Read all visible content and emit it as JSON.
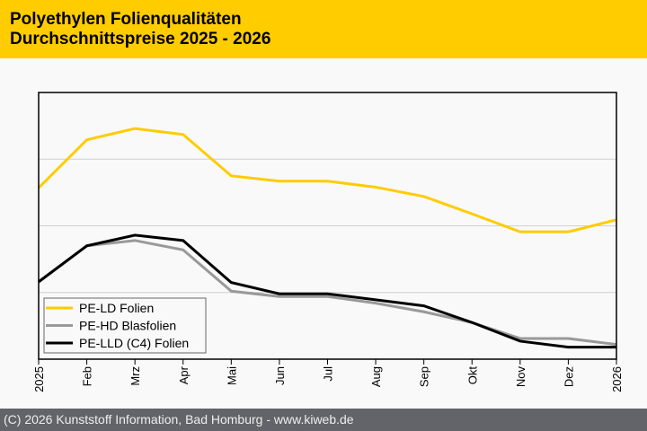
{
  "header": {
    "title_line1": "Polyethylen Folienqualitäten",
    "title_line2": "Durchschnittspreise 2025 - 2026"
  },
  "footer": {
    "text": "(C) 2026 Kunststoff Information, Bad Homburg - www.kiweb.de"
  },
  "colors": {
    "header_bg": "#ffcc00",
    "footer_bg": "#636469",
    "pe_ld": "#ffcc00",
    "pe_hd": "#999999",
    "pe_lld": "#000000"
  },
  "chart_data": {
    "type": "line",
    "title": "Polyethylen Folienqualitäten Durchschnittspreise 2025 - 2026",
    "xlabel": "",
    "ylabel": "",
    "y_units": "relative (no y-axis tick labels shown; 1 unit = one gridline band)",
    "ylim": [
      0,
      4
    ],
    "grid": true,
    "legend_position": "bottom-left",
    "categories": [
      "2025",
      "Feb",
      "Mrz",
      "Apr",
      "Mai",
      "Jun",
      "Jul",
      "Aug",
      "Sep",
      "Okt",
      "Nov",
      "Dez",
      "2026"
    ],
    "series": [
      {
        "name": "PE-LD Folien",
        "color": "#ffcc00",
        "values": [
          2.57,
          3.29,
          3.46,
          3.37,
          2.75,
          2.67,
          2.67,
          2.58,
          2.44,
          2.18,
          1.91,
          1.91,
          2.09
        ]
      },
      {
        "name": "PE-HD Blasfolien",
        "color": "#999999",
        "values": [
          1.16,
          1.7,
          1.78,
          1.64,
          1.02,
          0.94,
          0.94,
          0.84,
          0.71,
          0.55,
          0.31,
          0.31,
          0.22
        ]
      },
      {
        "name": "PE-LLD (C4) Folien",
        "color": "#000000",
        "values": [
          1.16,
          1.7,
          1.86,
          1.78,
          1.15,
          0.98,
          0.98,
          0.89,
          0.8,
          0.55,
          0.27,
          0.18,
          0.18
        ]
      }
    ]
  }
}
